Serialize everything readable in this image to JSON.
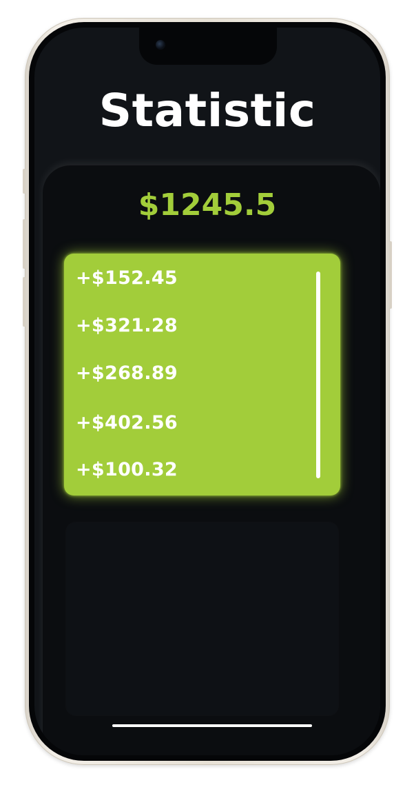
{
  "header": {
    "title": "Statistic"
  },
  "summary": {
    "total": "$1245.5"
  },
  "transactions": [
    {
      "amount": "+$152.45"
    },
    {
      "amount": "+$321.28"
    },
    {
      "amount": "+$268.89"
    },
    {
      "amount": "+$402.56"
    },
    {
      "amount": "+$100.32"
    }
  ],
  "colors": {
    "accent": "#a2cd3a",
    "background": "#111418",
    "panel": "#0b0d10",
    "text": "#ffffff"
  }
}
